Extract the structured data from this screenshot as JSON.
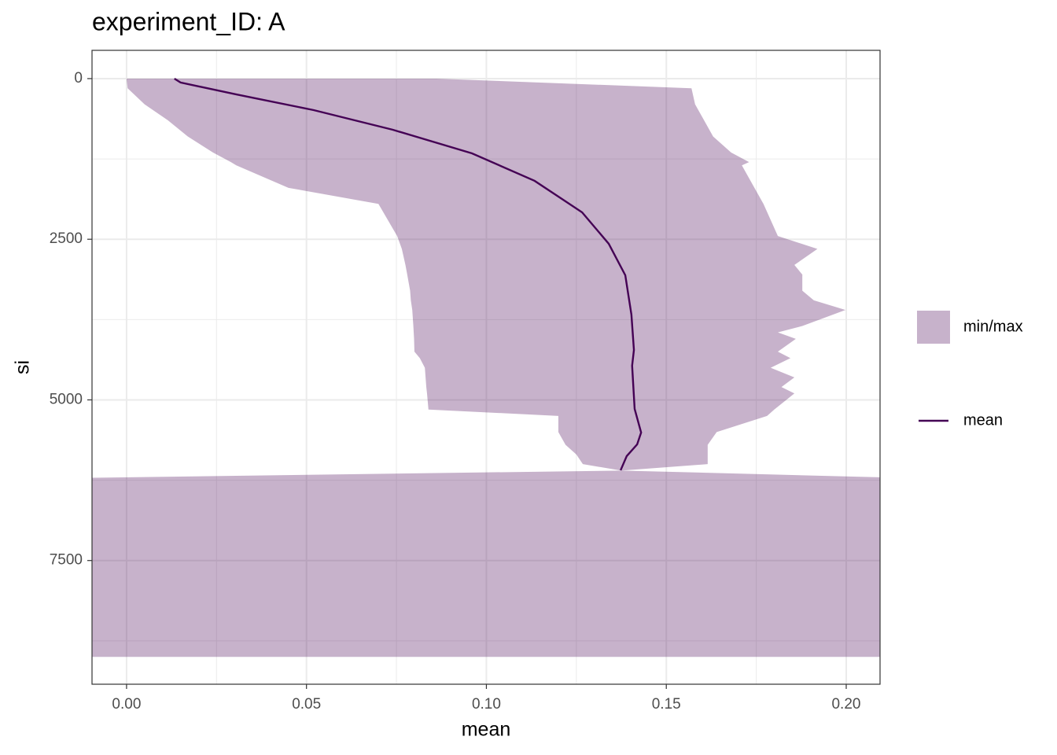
{
  "chart_data": {
    "type": "line",
    "title": "experiment_ID: A",
    "x_label": "mean",
    "y_label": "si",
    "xlim": [
      -0.0096,
      0.2094
    ],
    "ylim": [
      -440,
      9425
    ],
    "y_reversed": true,
    "xticks": [
      {
        "value": 0,
        "label": "0.00"
      },
      {
        "value": 0.05,
        "label": "0.05"
      },
      {
        "value": 0.1,
        "label": "0.10"
      },
      {
        "value": 0.15,
        "label": "0.15"
      },
      {
        "value": 0.2,
        "label": "0.20"
      }
    ],
    "yticks": [
      0,
      2500,
      5000,
      7500
    ],
    "x_minor_grid": [
      0.025,
      0.075,
      0.125,
      0.175
    ],
    "y_minor_grid": [
      1250,
      3750,
      6250,
      8750
    ],
    "grid": true,
    "legend_position": "right",
    "series": [
      {
        "name": "min/max",
        "type": "ribbon",
        "color": "#440154",
        "alpha": 0.3,
        "si": [
          0,
          150,
          400,
          650,
          900,
          1150,
          1300,
          1350,
          1700,
          1950,
          2450,
          2650,
          2900,
          3050,
          3300,
          3450,
          3600,
          3850,
          3950,
          4050,
          4250,
          4350,
          4500,
          4650,
          4800,
          4900,
          5150,
          5250,
          5500,
          5700,
          5850,
          6000,
          6100,
          6220,
          9000
        ],
        "min": [
          0.0,
          0.0003,
          0.005,
          0.0115,
          0.017,
          0.024,
          0.029,
          0.0305,
          0.045,
          0.07,
          0.0752,
          0.0765,
          0.0775,
          0.078,
          0.0788,
          0.079,
          0.0794,
          0.0797,
          0.0798,
          0.0799,
          0.08,
          0.0815,
          0.0829,
          0.0831,
          0.0833,
          0.0835,
          0.0839,
          0.12,
          0.12,
          0.122,
          0.125,
          0.1268,
          0.1375,
          -0.02,
          -0.02
        ],
        "max": [
          0.0861,
          0.157,
          0.158,
          0.1605,
          0.163,
          0.168,
          0.173,
          0.171,
          0.1745,
          0.177,
          0.181,
          0.192,
          0.1856,
          0.1878,
          0.1878,
          0.191,
          0.1998,
          0.1878,
          0.181,
          0.186,
          0.181,
          0.1845,
          0.179,
          0.1856,
          0.182,
          0.1856,
          0.18,
          0.178,
          0.164,
          0.1615,
          0.1615,
          0.1615,
          0.1375,
          0.22,
          0.22
        ]
      },
      {
        "name": "mean",
        "type": "line",
        "color": "#440154",
        "si": [
          0,
          61,
          245,
          490,
          796,
          1163,
          1591,
          2081,
          2570,
          3060,
          3672,
          4223,
          4468,
          5141,
          5508,
          5692,
          5875,
          6095
        ],
        "values": [
          0.0133,
          0.015,
          0.0304,
          0.052,
          0.074,
          0.096,
          0.1134,
          0.1266,
          0.134,
          0.1386,
          0.1403,
          0.141,
          0.1405,
          0.1412,
          0.143,
          0.1419,
          0.139,
          0.1373
        ]
      }
    ]
  }
}
